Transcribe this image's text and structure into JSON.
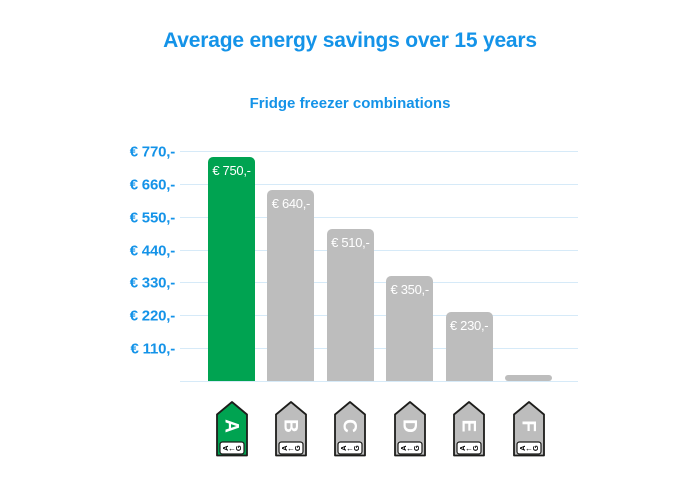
{
  "title": "Average energy savings over 15 years",
  "subtitle": "Fridge freezer combinations",
  "colors": {
    "heading_blue": "#1493e8",
    "gridline_blue": "#d6eaf8",
    "bar_green": "#00a351",
    "bar_gray": "#bdbdbd",
    "bar_label_white": "#ffffff",
    "tag_outline": "#1d1d1b"
  },
  "chart_data": {
    "type": "bar",
    "title": "Average energy savings over 15 years",
    "subtitle": "Fridge freezer combinations",
    "categories": [
      "A",
      "B",
      "C",
      "D",
      "E",
      "F"
    ],
    "values": [
      750,
      640,
      510,
      350,
      230,
      20
    ],
    "bar_labels": [
      "€ 750,-",
      "€ 640,-",
      "€ 510,-",
      "€ 350,-",
      "€ 230,-",
      ""
    ],
    "bar_styles": [
      "green",
      "gray",
      "gray",
      "gray",
      "gray",
      "gray"
    ],
    "xlabel": "",
    "ylabel": "",
    "ylim": [
      0,
      770
    ],
    "ytick_values": [
      770,
      660,
      550,
      440,
      330,
      220,
      110
    ],
    "ytick_labels": [
      "€ 770,-",
      "€ 660,-",
      "€ 550,-",
      "€ 440,-",
      "€ 330,-",
      "€ 220,-",
      "€ 110,-"
    ],
    "grid": true,
    "legend": false,
    "energy_scale": {
      "from": "A",
      "arrow": "←",
      "to": "G"
    }
  }
}
